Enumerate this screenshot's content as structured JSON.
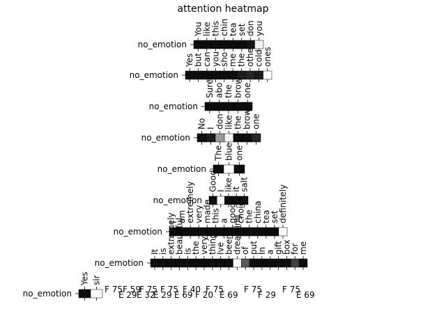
{
  "chart_data": {
    "type": "heatmap",
    "title": "attention heatmap",
    "colormap": "gray",
    "rows": [
      {
        "label": "no_emotion",
        "tokens": [
          "You",
          "like",
          "this",
          "chin",
          "tea",
          "set",
          "don",
          "you"
        ],
        "values": [
          0.05,
          0.05,
          0.05,
          0.05,
          0.05,
          0.05,
          0.08,
          0.95
        ]
      },
      {
        "label": "no_emotion",
        "tokens": [
          "Yes",
          "but",
          "can",
          "you",
          "sho",
          "me",
          "the",
          "othe",
          "cold",
          "ones"
        ],
        "values": [
          0.05,
          0.05,
          0.05,
          0.05,
          0.05,
          0.05,
          0.1,
          0.15,
          0.1,
          1
        ]
      },
      {
        "label": "no_emotion",
        "tokens": [
          "Sure",
          "abo",
          "the",
          "brow",
          "one"
        ],
        "values": [
          0.05,
          0.05,
          0.05,
          0.05,
          0.05
        ]
      },
      {
        "label": "no_emotion",
        "tokens": [
          "No",
          "I",
          "don",
          "like",
          "the",
          "brow",
          "one"
        ],
        "values": [
          0.05,
          0.1,
          0.6,
          0.95,
          0.05,
          0.05,
          0.15
        ]
      },
      {
        "label": "no_emotion",
        "tokens": [
          "The",
          "blue",
          "one"
        ],
        "values": [
          0.05,
          1,
          0.05
        ]
      },
      {
        "label": "no_emotion",
        "tokens": [
          "Good",
          "I",
          "like",
          "it",
          "salt"
        ],
        "values": [
          0.05,
          1,
          0.05,
          0.05,
          0.05
        ]
      },
      {
        "label": "no_emotion",
        "tokens": [
          "I",
          "am",
          "extremely",
          "very",
          "made",
          "this",
          "a",
          "good",
          "choice",
          "the",
          "china",
          "tea",
          "set",
          "definitely"
        ],
        "values": [
          0.05,
          0.05,
          0.05,
          0.05,
          0.05,
          0.05,
          0.05,
          0.05,
          0.05,
          0.05,
          0.05,
          0.05,
          0.05,
          1
        ]
      },
      {
        "label": "no_emotion",
        "tokens": [
          "It",
          "is",
          "extremely",
          "beautiful",
          "is",
          "the",
          "very",
          "thing",
          "Ive",
          "been",
          "dreaming",
          "of",
          "put",
          "In",
          "a",
          "gift",
          "box",
          "for",
          "me"
        ],
        "values": [
          0.05,
          0.05,
          0.05,
          0.05,
          0.05,
          0.05,
          0.05,
          0.05,
          0.05,
          0.05,
          1,
          0.35,
          0.05,
          0.05,
          0.05,
          0.05,
          0.05,
          0.25,
          0.05
        ]
      },
      {
        "label": "no_emotion",
        "tokens": [
          "Yes",
          "sir"
        ],
        "values": [
          0.05,
          1
        ]
      }
    ],
    "bottom_labels": [
      "F 75",
      "E 29",
      "F 59",
      "E 32",
      "F 75",
      "E 29",
      "F 75",
      "E 69",
      "F 40",
      "F 20",
      "F 75",
      "E 69",
      "F 75",
      "F 29",
      "F 75",
      "E 69"
    ]
  }
}
